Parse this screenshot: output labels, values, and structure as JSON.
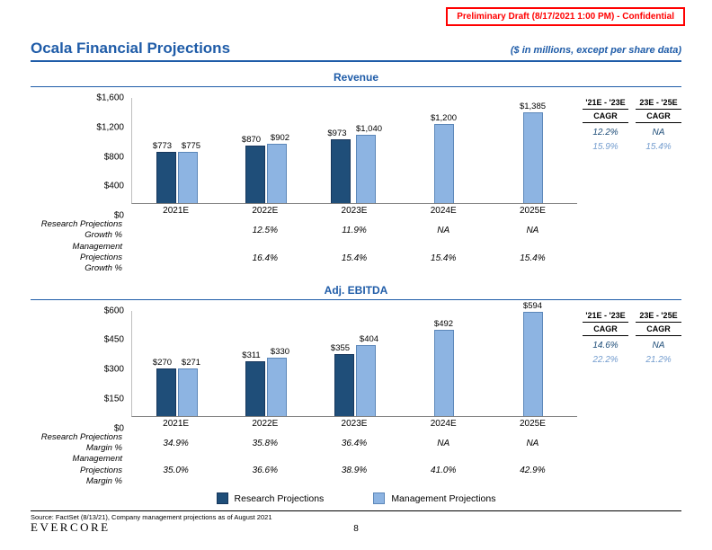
{
  "banner": {
    "text": "Preliminary Draft (8/17/2021 1:00 PM) - Confidential"
  },
  "header": {
    "title": "Ocala Financial Projections",
    "subtitle": "($ in millions, except per share data)"
  },
  "colors": {
    "research": "#1F4E79",
    "management": "#8DB4E2",
    "management_text": "#739CCE",
    "blue": "#1F5CA8",
    "red": "#FF0000"
  },
  "chart_data": [
    {
      "type": "bar",
      "title": "Revenue",
      "ylim": [
        0,
        1600
      ],
      "grid": false,
      "legend_position": "bottom-shared",
      "yticks": [
        {
          "value": 1600,
          "label": "$1,600"
        },
        {
          "value": 1200,
          "label": "$1,200"
        },
        {
          "value": 800,
          "label": "$800"
        },
        {
          "value": 400,
          "label": "$400"
        },
        {
          "value": 0,
          "label": "$0"
        }
      ],
      "categories": [
        "2021E",
        "2022E",
        "2023E",
        "2024E",
        "2025E"
      ],
      "series": [
        {
          "name": "Research Projections",
          "values": [
            773,
            870,
            973,
            null,
            null
          ],
          "labels": [
            "$773",
            "$870",
            "$973",
            null,
            null
          ]
        },
        {
          "name": "Management Projections",
          "values": [
            775,
            902,
            1040,
            1200,
            1385
          ],
          "labels": [
            "$775",
            "$902",
            "$1,040",
            "$1,200",
            "$1,385"
          ]
        }
      ],
      "cagr": {
        "col1_header": "'21E - '23E",
        "col2_header": "23E - '25E",
        "sub_label": "CAGR",
        "rows": [
          {
            "series": "Research Projections",
            "col1": "12.2%",
            "col2": "NA"
          },
          {
            "series": "Management Projections",
            "col1": "15.9%",
            "col2": "15.4%"
          }
        ]
      },
      "stat_rows": [
        {
          "label_line1": "Research Projections",
          "label_line2": "Growth %",
          "values": [
            "",
            "12.5%",
            "11.9%",
            "NA",
            "NA"
          ]
        },
        {
          "label_line1": "Management Projections",
          "label_line2": "Growth %",
          "values": [
            "",
            "16.4%",
            "15.4%",
            "15.4%",
            "15.4%"
          ]
        }
      ]
    },
    {
      "type": "bar",
      "title": "Adj. EBITDA",
      "ylim": [
        0,
        600
      ],
      "grid": false,
      "legend_position": "bottom-shared",
      "yticks": [
        {
          "value": 600,
          "label": "$600"
        },
        {
          "value": 450,
          "label": "$450"
        },
        {
          "value": 300,
          "label": "$300"
        },
        {
          "value": 150,
          "label": "$150"
        },
        {
          "value": 0,
          "label": "$0"
        }
      ],
      "categories": [
        "2021E",
        "2022E",
        "2023E",
        "2024E",
        "2025E"
      ],
      "series": [
        {
          "name": "Research Projections",
          "values": [
            270,
            311,
            355,
            null,
            null
          ],
          "labels": [
            "$270",
            "$311",
            "$355",
            null,
            null
          ]
        },
        {
          "name": "Management Projections",
          "values": [
            271,
            330,
            404,
            492,
            594
          ],
          "labels": [
            "$271",
            "$330",
            "$404",
            "$492",
            "$594"
          ]
        }
      ],
      "cagr": {
        "col1_header": "'21E - '23E",
        "col2_header": "23E - '25E",
        "sub_label": "CAGR",
        "rows": [
          {
            "series": "Research Projections",
            "col1": "14.6%",
            "col2": "NA"
          },
          {
            "series": "Management Projections",
            "col1": "22.2%",
            "col2": "21.2%"
          }
        ]
      },
      "stat_rows": [
        {
          "label_line1": "Research Projections",
          "label_line2": "Margin %",
          "values": [
            "34.9%",
            "35.8%",
            "36.4%",
            "NA",
            "NA"
          ]
        },
        {
          "label_line1": "Management Projections",
          "label_line2": "Margin %",
          "values": [
            "35.0%",
            "36.6%",
            "38.9%",
            "41.0%",
            "42.9%"
          ]
        }
      ]
    }
  ],
  "legend": {
    "research_label": "Research Projections",
    "management_label": "Management Projections"
  },
  "footer": {
    "source": "Source: FactSet (8/13/21), Company management projections as of August 2021",
    "logo": "EVERCORE",
    "page_number": "8"
  }
}
